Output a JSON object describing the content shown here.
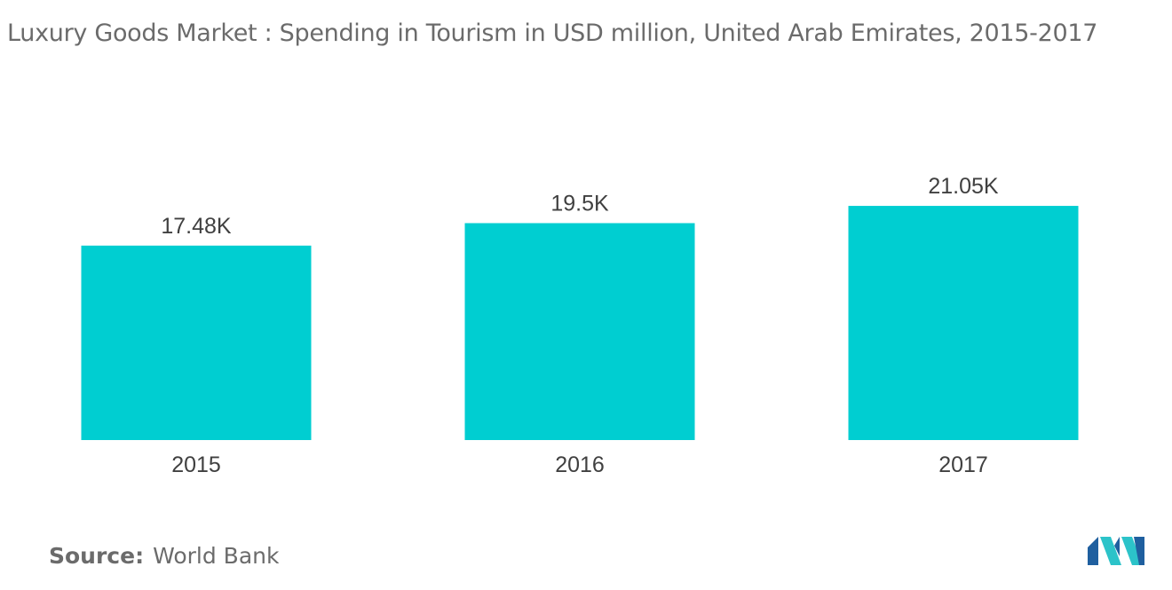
{
  "chart_data": {
    "type": "bar",
    "title": "Luxury Goods Market : Spending in Tourism in USD million, United Arab Emirates, 2015-2017",
    "categories": [
      "2015",
      "2016",
      "2017"
    ],
    "values": [
      17480,
      19500,
      21050
    ],
    "value_labels": [
      "17.48K",
      "19.5K",
      "21.05K"
    ],
    "xlabel": "",
    "ylabel": "",
    "ylim": [
      0,
      26000
    ],
    "grid": false,
    "legend": "none",
    "bar_color": "#00ced1"
  },
  "source": {
    "prefix": "Source:",
    "text": "World Bank"
  },
  "logo": {
    "icon": "mordor-intelligence-logo",
    "colors": [
      "#1f5f9f",
      "#2cc3c9"
    ]
  }
}
